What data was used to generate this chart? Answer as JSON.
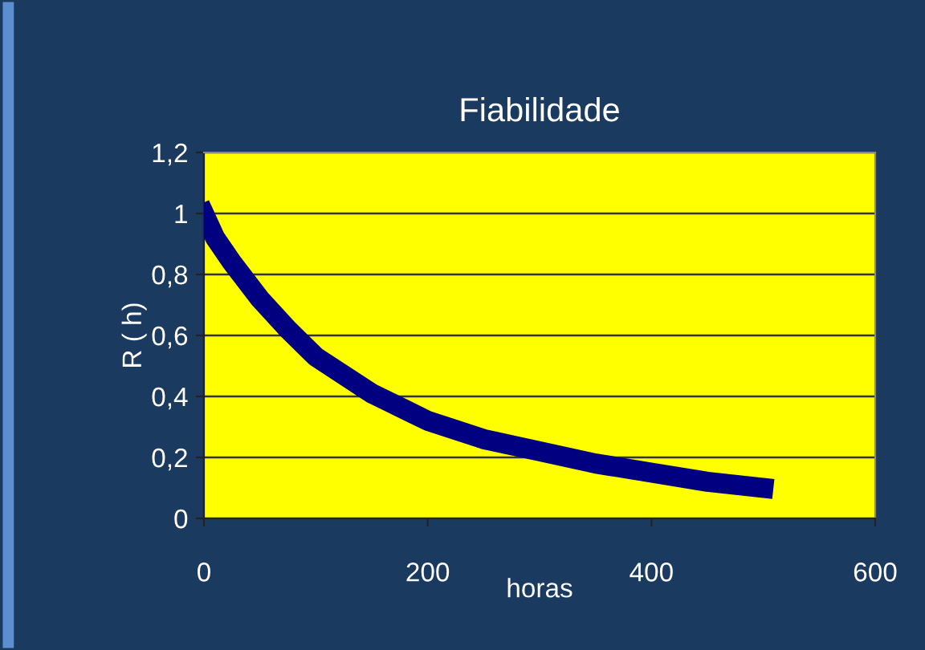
{
  "chart_data": {
    "type": "line",
    "title": "Fiabilidade",
    "xlabel": "horas",
    "ylabel": "R ( h)",
    "x": [
      0,
      10,
      25,
      50,
      75,
      100,
      150,
      200,
      250,
      300,
      350,
      400,
      450,
      500
    ],
    "series": [
      {
        "color": "#000080",
        "values": [
          1.0,
          0.92,
          0.84,
          0.72,
          0.62,
          0.53,
          0.41,
          0.32,
          0.26,
          0.22,
          0.18,
          0.15,
          0.12,
          0.1
        ]
      }
    ],
    "xlim": [
      0,
      600
    ],
    "xticks": [
      0,
      200,
      400,
      600
    ],
    "ylim": [
      0,
      1.2
    ],
    "yticks": [
      {
        "value": 0,
        "label": "0"
      },
      {
        "value": 0.2,
        "label": "0,2"
      },
      {
        "value": 0.4,
        "label": "0,4"
      },
      {
        "value": 0.6,
        "label": "0,6"
      },
      {
        "value": 0.8,
        "label": "0,8"
      },
      {
        "value": 1,
        "label": "1"
      },
      {
        "value": 1.2,
        "label": "1,2"
      }
    ],
    "grid": "y",
    "legend": false
  }
}
